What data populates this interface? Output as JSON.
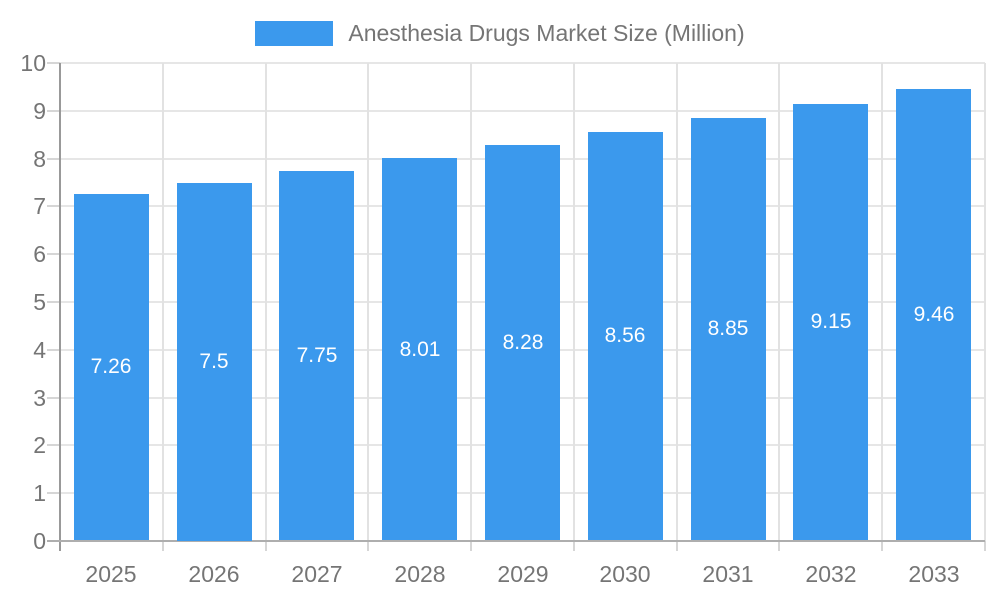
{
  "legend": {
    "series_label": "Anesthesia Drugs Market Size (Million)"
  },
  "chart_data": {
    "type": "bar",
    "title": "Anesthesia Drugs Market Size (Million)",
    "categories": [
      "2025",
      "2026",
      "2027",
      "2028",
      "2029",
      "2030",
      "2031",
      "2032",
      "2033"
    ],
    "values": [
      7.26,
      7.5,
      7.75,
      8.01,
      8.28,
      8.56,
      8.85,
      9.15,
      9.46
    ],
    "data_labels": [
      "7.26",
      "7.5",
      "7.75",
      "8.01",
      "8.28",
      "8.56",
      "8.85",
      "9.15",
      "9.46"
    ],
    "xlabel": "",
    "ylabel": "",
    "ylim": [
      0,
      10
    ],
    "y_ticks": [
      "0",
      "1",
      "2",
      "3",
      "4",
      "5",
      "6",
      "7",
      "8",
      "9",
      "10"
    ],
    "grid": true,
    "legend_position": "top",
    "colors": {
      "bar": "#3b99ed",
      "bar_label_text": "#ffffff",
      "axis_text": "#757575",
      "gridline_h": "#e6e6e6",
      "gridline_v": "#e2e2e2",
      "tick": "#d6d6d6",
      "y_axis_line": "#999999",
      "baseline": "#aeaeae",
      "background": "#ffffff"
    }
  }
}
